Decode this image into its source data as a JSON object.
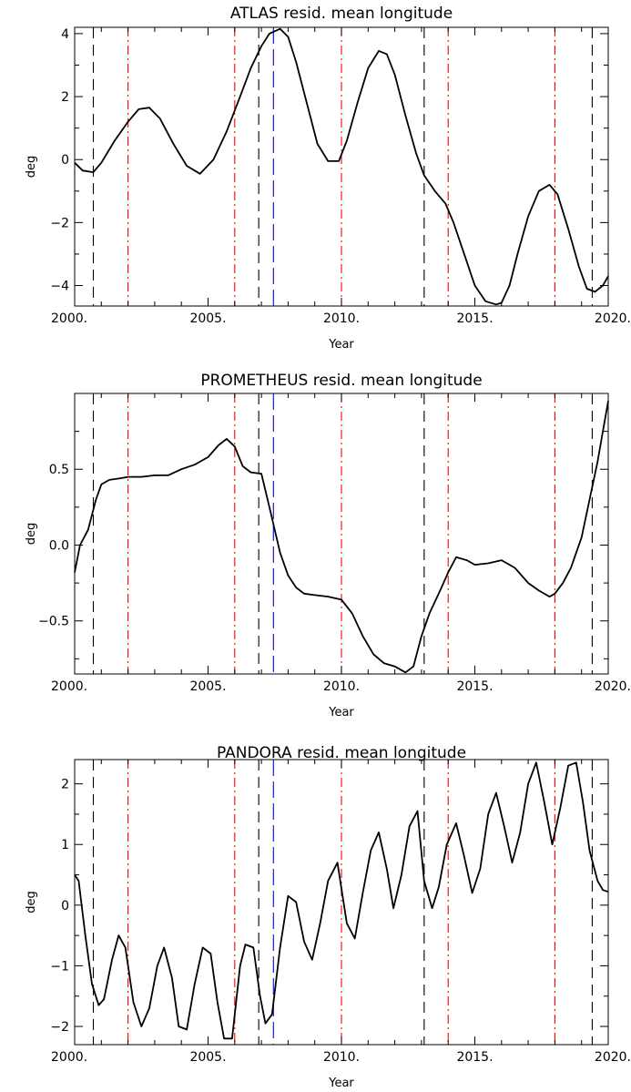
{
  "chart_data": [
    {
      "type": "line",
      "title": "ATLAS resid. mean longitude",
      "xlabel": "Year",
      "ylabel": "deg",
      "xlim": [
        2000,
        2020
      ],
      "ylim": [
        -4.65,
        4.2
      ],
      "x_ticks": [
        2000,
        2005,
        2010,
        2015,
        2020
      ],
      "x_tick_labels": [
        "2000.",
        "2005.",
        "2010.",
        "2015.",
        "2020."
      ],
      "y_ticks": [
        -4,
        -2,
        0,
        2,
        4
      ],
      "y_tick_labels": [
        "−4",
        "−2",
        "0",
        "2",
        "4"
      ],
      "grid": false,
      "series": [
        {
          "color": "#000000",
          "x": [
            2000,
            2000.3,
            2000.7,
            2001.0,
            2001.5,
            2002.0,
            2002.4,
            2002.8,
            2003.2,
            2003.7,
            2004.2,
            2004.7,
            2005.2,
            2005.7,
            2006.2,
            2006.6,
            2007.0,
            2007.3,
            2007.7,
            2008.0,
            2008.3,
            2008.7,
            2009.1,
            2009.5,
            2009.9,
            2010.2,
            2010.6,
            2011.0,
            2011.4,
            2011.7,
            2012.0,
            2012.4,
            2012.8,
            2013.1,
            2013.5,
            2013.9,
            2014.2,
            2014.6,
            2015.0,
            2015.4,
            2015.8,
            2016.0,
            2016.3,
            2016.6,
            2017.0,
            2017.4,
            2017.8,
            2018.1,
            2018.5,
            2018.9,
            2019.2,
            2019.5,
            2019.8,
            2020.0
          ],
          "y": [
            -0.1,
            -0.35,
            -0.4,
            -0.1,
            0.6,
            1.2,
            1.6,
            1.65,
            1.3,
            0.5,
            -0.2,
            -0.45,
            0.0,
            0.9,
            2.0,
            2.9,
            3.6,
            4.0,
            4.15,
            3.9,
            3.1,
            1.8,
            0.5,
            -0.05,
            -0.05,
            0.6,
            1.8,
            2.9,
            3.45,
            3.35,
            2.7,
            1.4,
            0.2,
            -0.5,
            -1.0,
            -1.4,
            -2.0,
            -3.0,
            -4.0,
            -4.5,
            -4.6,
            -4.55,
            -4.0,
            -3.0,
            -1.8,
            -1.0,
            -0.8,
            -1.1,
            -2.2,
            -3.4,
            -4.1,
            -4.2,
            -4.0,
            -3.7
          ]
        }
      ],
      "vlines": [
        {
          "x": 2000.7,
          "color": "#000000",
          "style": "dash"
        },
        {
          "x": 2002.0,
          "color": "#ff0000",
          "style": "dashdot"
        },
        {
          "x": 2006.0,
          "color": "#ff0000",
          "style": "dashdot"
        },
        {
          "x": 2006.9,
          "color": "#000000",
          "style": "dash"
        },
        {
          "x": 2007.45,
          "color": "#0000ff",
          "style": "longdash"
        },
        {
          "x": 2010.0,
          "color": "#ff0000",
          "style": "dashdot"
        },
        {
          "x": 2013.1,
          "color": "#000000",
          "style": "dash"
        },
        {
          "x": 2014.0,
          "color": "#ff0000",
          "style": "dashdot"
        },
        {
          "x": 2018.0,
          "color": "#ff0000",
          "style": "dashdot"
        },
        {
          "x": 2019.4,
          "color": "#000000",
          "style": "dash"
        }
      ]
    },
    {
      "type": "line",
      "title": "PROMETHEUS resid. mean longitude",
      "xlabel": "Year",
      "ylabel": "deg",
      "xlim": [
        2000,
        2020
      ],
      "ylim": [
        -0.85,
        1.0
      ],
      "x_ticks": [
        2000,
        2005,
        2010,
        2015,
        2020
      ],
      "x_tick_labels": [
        "2000.",
        "2005.",
        "2010.",
        "2015.",
        "2020."
      ],
      "y_ticks": [
        -0.5,
        0.0,
        0.5
      ],
      "y_tick_labels": [
        "−0.5",
        "0.0",
        "0.5"
      ],
      "grid": false,
      "series": [
        {
          "color": "#000000",
          "x": [
            2000,
            2000.2,
            2000.5,
            2000.8,
            2001.0,
            2001.3,
            2001.7,
            2002.0,
            2002.5,
            2003.0,
            2003.5,
            2004.0,
            2004.5,
            2005.0,
            2005.4,
            2005.7,
            2006.0,
            2006.3,
            2006.6,
            2007.0,
            2007.3,
            2007.7,
            2008.0,
            2008.3,
            2008.6,
            2009.0,
            2009.5,
            2010.0,
            2010.4,
            2010.8,
            2011.2,
            2011.6,
            2012.0,
            2012.4,
            2012.7,
            2013.0,
            2013.3,
            2013.7,
            2014.0,
            2014.3,
            2014.7,
            2015.0,
            2015.5,
            2016.0,
            2016.5,
            2017.0,
            2017.4,
            2017.8,
            2018.0,
            2018.3,
            2018.6,
            2019.0,
            2019.3,
            2019.6,
            2019.8,
            2020.0
          ],
          "y": [
            -0.18,
            0.0,
            0.1,
            0.3,
            0.4,
            0.43,
            0.44,
            0.45,
            0.45,
            0.46,
            0.46,
            0.5,
            0.53,
            0.58,
            0.66,
            0.7,
            0.65,
            0.52,
            0.48,
            0.47,
            0.25,
            -0.05,
            -0.2,
            -0.28,
            -0.32,
            -0.33,
            -0.34,
            -0.36,
            -0.45,
            -0.6,
            -0.72,
            -0.78,
            -0.8,
            -0.84,
            -0.8,
            -0.6,
            -0.45,
            -0.3,
            -0.18,
            -0.08,
            -0.1,
            -0.13,
            -0.12,
            -0.1,
            -0.15,
            -0.25,
            -0.3,
            -0.34,
            -0.32,
            -0.25,
            -0.15,
            0.05,
            0.3,
            0.55,
            0.75,
            0.95
          ]
        }
      ],
      "vlines": [
        {
          "x": 2000.7,
          "color": "#000000",
          "style": "dash"
        },
        {
          "x": 2002.0,
          "color": "#ff0000",
          "style": "dashdot"
        },
        {
          "x": 2006.0,
          "color": "#ff0000",
          "style": "dashdot"
        },
        {
          "x": 2006.9,
          "color": "#000000",
          "style": "dash"
        },
        {
          "x": 2007.45,
          "color": "#0000ff",
          "style": "longdash"
        },
        {
          "x": 2010.0,
          "color": "#ff0000",
          "style": "dashdot"
        },
        {
          "x": 2013.1,
          "color": "#000000",
          "style": "dash"
        },
        {
          "x": 2014.0,
          "color": "#ff0000",
          "style": "dashdot"
        },
        {
          "x": 2018.0,
          "color": "#ff0000",
          "style": "dashdot"
        },
        {
          "x": 2019.4,
          "color": "#000000",
          "style": "dash"
        }
      ]
    },
    {
      "type": "line",
      "title": "PANDORA resid. mean longitude",
      "xlabel": "Year",
      "ylabel": "deg",
      "xlim": [
        2000,
        2020
      ],
      "ylim": [
        -2.3,
        2.4
      ],
      "x_ticks": [
        2000,
        2005,
        2010,
        2015,
        2020
      ],
      "x_tick_labels": [
        "2000.",
        "2005.",
        "2010.",
        "2015.",
        "2020."
      ],
      "y_ticks": [
        -2,
        -1,
        0,
        1,
        2
      ],
      "y_tick_labels": [
        "−2",
        "−1",
        "0",
        "1",
        "2"
      ],
      "grid": false,
      "series": [
        {
          "color": "#000000",
          "x": [
            2000,
            2000.15,
            2000.4,
            2000.65,
            2000.9,
            2001.1,
            2001.4,
            2001.65,
            2001.9,
            2002.2,
            2002.5,
            2002.8,
            2003.1,
            2003.35,
            2003.65,
            2003.9,
            2004.2,
            2004.5,
            2004.8,
            2005.1,
            2005.35,
            2005.6,
            2005.9,
            2006.2,
            2006.4,
            2006.7,
            2006.95,
            2007.15,
            2007.4,
            2007.7,
            2008.0,
            2008.3,
            2008.6,
            2008.9,
            2009.2,
            2009.5,
            2009.85,
            2010.2,
            2010.5,
            2010.8,
            2011.1,
            2011.4,
            2011.7,
            2011.95,
            2012.25,
            2012.55,
            2012.85,
            2013.1,
            2013.4,
            2013.65,
            2013.95,
            2014.3,
            2014.6,
            2014.9,
            2015.2,
            2015.5,
            2015.8,
            2016.1,
            2016.4,
            2016.7,
            2017.0,
            2017.3,
            2017.6,
            2017.9,
            2018.2,
            2018.5,
            2018.8,
            2019.05,
            2019.3,
            2019.6,
            2019.8,
            2020.0
          ],
          "y": [
            0.5,
            0.4,
            -0.5,
            -1.3,
            -1.65,
            -1.55,
            -0.9,
            -0.5,
            -0.7,
            -1.6,
            -2.0,
            -1.7,
            -1.0,
            -0.7,
            -1.2,
            -2.0,
            -2.05,
            -1.3,
            -0.7,
            -0.8,
            -1.6,
            -2.2,
            -2.2,
            -1.0,
            -0.65,
            -0.7,
            -1.5,
            -1.95,
            -1.8,
            -0.7,
            0.15,
            0.05,
            -0.6,
            -0.9,
            -0.3,
            0.4,
            0.7,
            -0.3,
            -0.55,
            0.2,
            0.9,
            1.2,
            0.6,
            -0.05,
            0.5,
            1.3,
            1.55,
            0.4,
            -0.05,
            0.3,
            1.0,
            1.35,
            0.8,
            0.2,
            0.6,
            1.5,
            1.85,
            1.3,
            0.7,
            1.2,
            2.0,
            2.35,
            1.7,
            1.0,
            1.6,
            2.3,
            2.35,
            1.7,
            0.9,
            0.4,
            0.25,
            0.22
          ]
        }
      ],
      "vlines": [
        {
          "x": 2000.7,
          "color": "#000000",
          "style": "dash"
        },
        {
          "x": 2002.0,
          "color": "#ff0000",
          "style": "dashdot"
        },
        {
          "x": 2006.0,
          "color": "#ff0000",
          "style": "dashdot"
        },
        {
          "x": 2006.9,
          "color": "#000000",
          "style": "dash"
        },
        {
          "x": 2007.45,
          "color": "#0000ff",
          "style": "longdash"
        },
        {
          "x": 2010.0,
          "color": "#ff0000",
          "style": "dashdot"
        },
        {
          "x": 2013.1,
          "color": "#000000",
          "style": "dash"
        },
        {
          "x": 2014.0,
          "color": "#ff0000",
          "style": "dashdot"
        },
        {
          "x": 2018.0,
          "color": "#ff0000",
          "style": "dashdot"
        },
        {
          "x": 2019.4,
          "color": "#000000",
          "style": "dash"
        }
      ]
    }
  ]
}
